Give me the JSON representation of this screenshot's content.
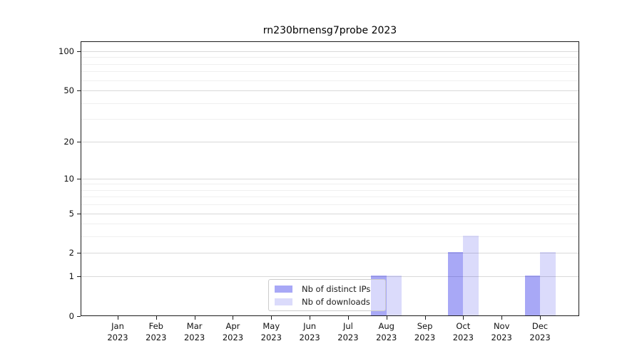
{
  "chart_data": {
    "type": "bar",
    "title": "rn230brnensg7probe 2023",
    "categories": [
      "Jan",
      "Feb",
      "Mar",
      "Apr",
      "May",
      "Jun",
      "Jul",
      "Aug",
      "Sep",
      "Oct",
      "Nov",
      "Dec"
    ],
    "x_tick_year": "2023",
    "series": [
      {
        "name": "Nb of distinct IPs",
        "color": "rgba(0,0,230,0.34)",
        "values": [
          0,
          0,
          0,
          0,
          0,
          0,
          0,
          1,
          0,
          2,
          0,
          1
        ]
      },
      {
        "name": "Nb of downloads",
        "color": "rgba(0,0,230,0.14)",
        "values": [
          0,
          0,
          0,
          0,
          0,
          0,
          0,
          1,
          0,
          3,
          0,
          2
        ]
      }
    ],
    "y_axis": {
      "scale": "log10(1+y)",
      "ticks": [
        0,
        1,
        2,
        5,
        10,
        20,
        50,
        100
      ],
      "minor_ticks": [
        3,
        4,
        6,
        7,
        8,
        9,
        30,
        40,
        60,
        70,
        80,
        90
      ],
      "ylim": [
        0,
        118
      ]
    },
    "legend": {
      "entries": [
        "Nb of distinct IPs",
        "Nb of downloads"
      ],
      "position": "lower center"
    },
    "grid": {
      "enabled": true,
      "major_color": "#d9d9d9",
      "minor_color": "#efefef"
    },
    "colors": {
      "bar_distinct_ips": "#aaaaf7",
      "bar_downloads": "#dbdbfa",
      "axis": "#1c1c1c",
      "background": "#ffffff"
    }
  }
}
